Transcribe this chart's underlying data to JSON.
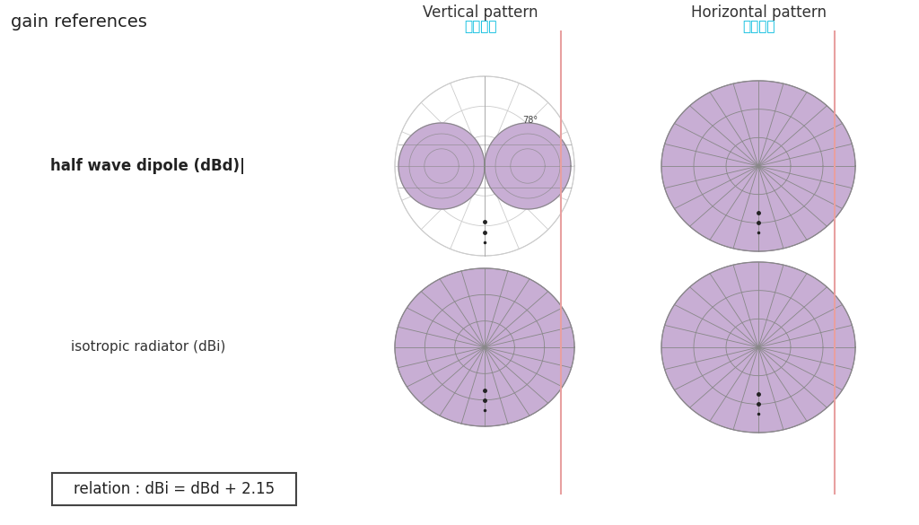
{
  "bg_color": "#ffffff",
  "title_gain_ref": "gain references",
  "title_vertical": "Vertical pattern",
  "title_horizontal": "Horizontal pattern",
  "subtitle_vertical": "垂直图案",
  "subtitle_horizontal": "水平图案",
  "label_dipole": "half wave dipole (dBd)|",
  "label_isotropic": "isotropic radiator (dBi)",
  "formula": "relation : dBi = dBd + 2.15",
  "fill_color": "#c8aed4",
  "line_color": "#888888",
  "grid_color": "#999999",
  "ref_circle_color": "#cccccc",
  "red_line_color": "#e8a0a0",
  "angle_label": "78°",
  "chinese_color": "#00bbdd",
  "dot_color": "#222222"
}
